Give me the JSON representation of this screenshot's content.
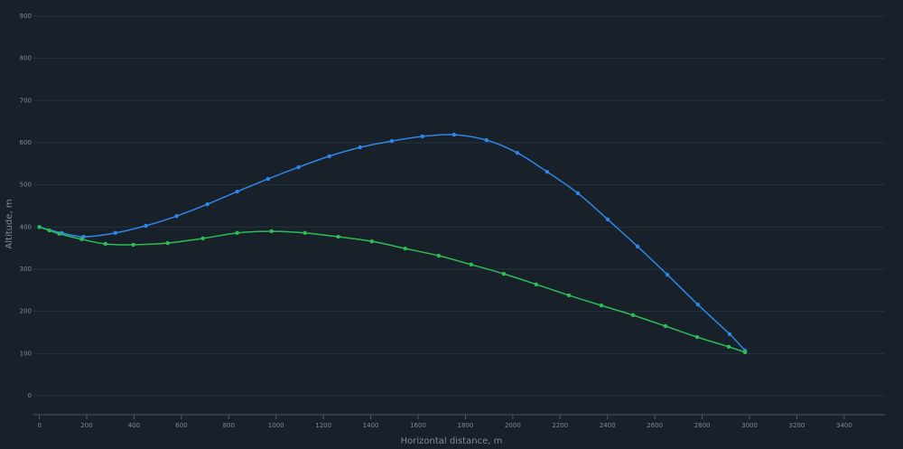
{
  "chart_data": {
    "type": "line",
    "xlabel": "Horizontal distance, m",
    "ylabel": "Altitude, m",
    "xlim": [
      -25,
      3572
    ],
    "ylim": [
      -45,
      917
    ],
    "xticks": [
      0,
      200,
      400,
      600,
      800,
      1000,
      1200,
      1400,
      1600,
      1800,
      2000,
      2200,
      2400,
      2600,
      2800,
      3000,
      3200,
      3400
    ],
    "yticks": [
      0,
      100,
      200,
      300,
      400,
      500,
      600,
      700,
      800,
      900
    ],
    "grid": true,
    "series": [
      {
        "color": "#2f86e8",
        "x": [
          0,
          95,
          187,
          321,
          450,
          580,
          710,
          836,
          966,
          1095,
          1225,
          1355,
          1489,
          1618,
          1752,
          1889,
          2019,
          2145,
          2275,
          2401,
          2527,
          2653,
          2782,
          2916,
          2981
        ],
        "values": [
          400,
          386,
          377,
          386,
          403,
          426,
          454,
          484,
          514,
          542,
          568,
          589,
          604,
          615,
          619,
          606,
          576,
          531,
          480,
          418,
          354,
          287,
          216,
          146,
          107
        ]
      },
      {
        "color": "#2dbd55",
        "x": [
          0,
          42,
          84,
          179,
          279,
          397,
          542,
          691,
          836,
          981,
          1122,
          1263,
          1405,
          1546,
          1687,
          1824,
          1962,
          2099,
          2237,
          2374,
          2508,
          2645,
          2779,
          2912,
          2981
        ],
        "values": [
          400,
          392,
          384,
          371,
          360,
          358,
          362,
          373,
          386,
          390,
          386,
          377,
          366,
          349,
          332,
          311,
          289,
          264,
          238,
          214,
          191,
          165,
          139,
          116,
          103
        ]
      }
    ]
  }
}
